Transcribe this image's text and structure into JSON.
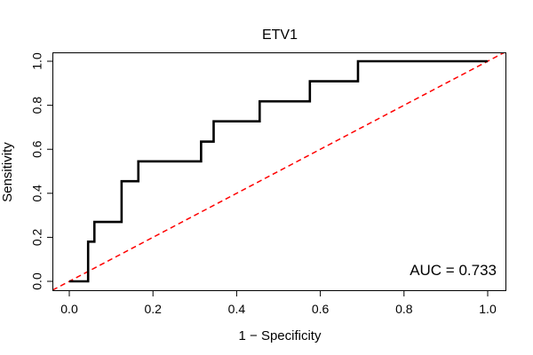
{
  "chart_data": {
    "type": "line",
    "title": "ETV1",
    "xlabel": "1 − Specificity",
    "ylabel": "Sensitivity",
    "xlim": [
      0,
      1
    ],
    "ylim": [
      0,
      1
    ],
    "x_ticks": [
      0.0,
      0.2,
      0.4,
      0.6,
      0.8,
      1.0
    ],
    "y_ticks": [
      0.0,
      0.2,
      0.4,
      0.6,
      0.8,
      1.0
    ],
    "x_tick_labels": [
      "0.0",
      "0.2",
      "0.4",
      "0.6",
      "0.8",
      "1.0"
    ],
    "y_tick_labels": [
      "0.0",
      "0.2",
      "0.4",
      "0.6",
      "0.8",
      "1.0"
    ],
    "grid": false,
    "annotation": "AUC = 0.733",
    "series": [
      {
        "color": "#000000",
        "style": "solid-step",
        "x": [
          0.0,
          0.045,
          0.045,
          0.05,
          0.05,
          0.06,
          0.06,
          0.125,
          0.125,
          0.165,
          0.165,
          0.315,
          0.315,
          0.345,
          0.345,
          0.455,
          0.455,
          0.575,
          0.575,
          0.69,
          0.69,
          1.0
        ],
        "y": [
          0.0,
          0.0,
          0.18,
          0.18,
          0.18,
          0.18,
          0.27,
          0.27,
          0.455,
          0.455,
          0.545,
          0.545,
          0.635,
          0.635,
          0.727,
          0.727,
          0.818,
          0.818,
          0.909,
          0.909,
          1.0,
          1.0
        ]
      },
      {
        "color": "#ff0000",
        "style": "dashed",
        "x": [
          -0.04,
          1.04
        ],
        "y": [
          -0.04,
          1.04
        ]
      }
    ]
  }
}
